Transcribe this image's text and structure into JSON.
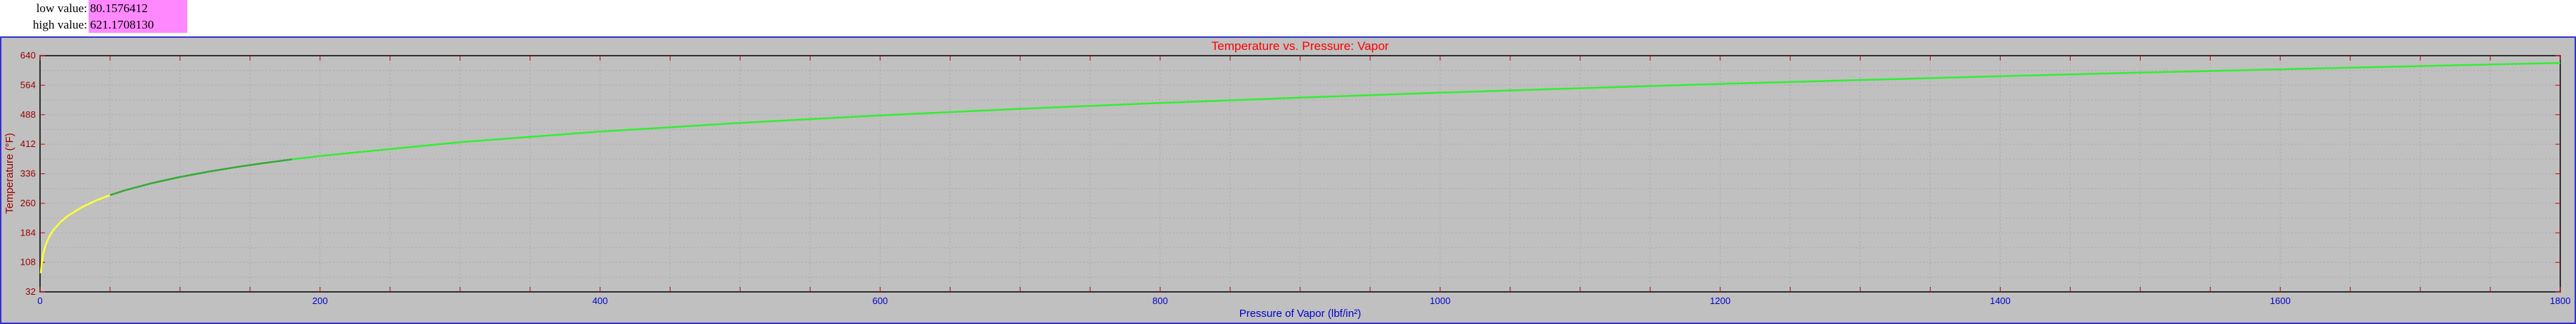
{
  "readouts": {
    "low_label": "low value:",
    "low_value": "80.1576412",
    "high_label": "high value:",
    "high_value": "621.1708130",
    "value_bg": "#ff88ff"
  },
  "chart_data": {
    "type": "line",
    "title": "Temperature vs. Pressure: Vapor",
    "xlabel": "Pressure of Vapor (lbf/in²)",
    "ylabel": "Temperature (°F)",
    "xlim": [
      0,
      1800
    ],
    "ylim": [
      32,
      640
    ],
    "x_ticks": [
      0,
      200,
      400,
      600,
      800,
      1000,
      1200,
      1400,
      1600,
      1800
    ],
    "y_ticks": [
      32,
      108,
      184,
      260,
      336,
      412,
      488,
      564,
      640
    ],
    "grid": true,
    "series": [
      {
        "segment": "low-pressure",
        "color": "#ffff33",
        "x": [
          0.5,
          1,
          2,
          4,
          6,
          8,
          10,
          14.7,
          20,
          30,
          40,
          50
        ],
        "y": [
          80.2,
          101.7,
          126.0,
          152.9,
          170.0,
          182.8,
          193.2,
          212.0,
          228.0,
          250.3,
          267.3,
          281.0
        ]
      },
      {
        "segment": "mid-pressure",
        "color": "#33aa33",
        "x": [
          50,
          60,
          80,
          100,
          120,
          140,
          160,
          180
        ],
        "y": [
          281.0,
          292.7,
          312.0,
          327.8,
          341.3,
          353.0,
          363.6,
          373.1
        ]
      },
      {
        "segment": "high-pressure",
        "color": "#33ee33",
        "x": [
          180,
          200,
          300,
          400,
          500,
          600,
          700,
          800,
          900,
          1000,
          1100,
          1200,
          1300,
          1400,
          1500,
          1600,
          1700,
          1800
        ],
        "y": [
          373.1,
          381.8,
          417.4,
          444.6,
          467.0,
          486.2,
          503.1,
          518.2,
          532.0,
          544.6,
          556.3,
          567.2,
          577.4,
          587.1,
          596.2,
          604.9,
          613.1,
          621.2
        ]
      }
    ],
    "colors": {
      "plot_bg": "#c0c0c0",
      "frame": "#3333cc",
      "title": "#ff0000",
      "x_ticks": "#0000cc",
      "y_ticks": "#990000",
      "xlabel": "#0000cc",
      "ylabel": "#990000",
      "grid": "#a8a8b8"
    }
  }
}
